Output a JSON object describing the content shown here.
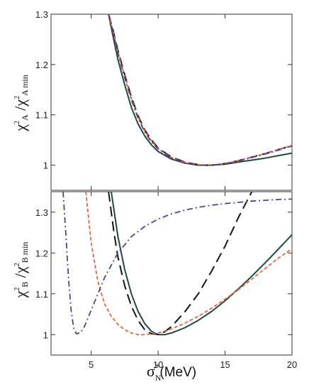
{
  "colors": {
    "solid": "#1f4a3f",
    "long_dash": "#141414",
    "short_dash": "#e8643c",
    "dash_dot": "#5a3f8a",
    "dotted_red": "#c23b3b",
    "frame": "#333333"
  },
  "chart_data": [
    {
      "type": "line",
      "panel": "top",
      "ylabel": {
        "chi": "χ",
        "sup": "2",
        "sub": "A",
        "slash": " /",
        "chi2": "χ",
        "sup2": "2",
        "sub2": "A min"
      },
      "xlim": [
        2,
        20
      ],
      "ylim": [
        0.95,
        1.3
      ],
      "yticks": [
        "1.3",
        "1.2",
        "1.1",
        "1"
      ],
      "ytick_values": [
        1.3,
        1.2,
        1.1,
        1.0
      ],
      "series": [
        {
          "style": "solid",
          "x": [
            6.3,
            6.6,
            7,
            7.5,
            8,
            8.5,
            9,
            9.5,
            10,
            11,
            12,
            13,
            13.5,
            14,
            15,
            16,
            17,
            18,
            19,
            20
          ],
          "y": [
            1.3,
            1.26,
            1.21,
            1.16,
            1.115,
            1.082,
            1.058,
            1.04,
            1.027,
            1.012,
            1.004,
            1.0,
            1.0,
            1.0,
            1.002,
            1.006,
            1.01,
            1.014,
            1.019,
            1.024
          ]
        },
        {
          "style": "long_dash",
          "x": [
            6.3,
            6.6,
            7,
            7.5,
            8,
            8.5,
            9,
            9.5,
            10,
            11,
            12,
            13,
            13.5,
            14,
            15,
            16,
            17,
            18,
            19,
            20
          ],
          "y": [
            1.3,
            1.272,
            1.228,
            1.18,
            1.136,
            1.098,
            1.07,
            1.05,
            1.034,
            1.016,
            1.006,
            1.001,
            1.0,
            1.0,
            1.003,
            1.009,
            1.016,
            1.023,
            1.031,
            1.039
          ]
        },
        {
          "style": "short_dash",
          "x": [
            6.3,
            6.6,
            7,
            7.5,
            8,
            8.5,
            9,
            9.5,
            10,
            11,
            12,
            13,
            13.5,
            14,
            15,
            16,
            17,
            18,
            19,
            20
          ],
          "y": [
            1.3,
            1.27,
            1.225,
            1.177,
            1.133,
            1.096,
            1.068,
            1.048,
            1.033,
            1.015,
            1.005,
            1.001,
            1.0,
            1.0,
            1.003,
            1.009,
            1.016,
            1.023,
            1.031,
            1.039
          ]
        },
        {
          "style": "dash_dot",
          "x": [
            6.3,
            6.6,
            7,
            7.5,
            8,
            8.5,
            9,
            9.5,
            10,
            11,
            12,
            13,
            13.5,
            14,
            15,
            16,
            17,
            18,
            19,
            20
          ],
          "y": [
            1.3,
            1.268,
            1.222,
            1.174,
            1.13,
            1.093,
            1.066,
            1.046,
            1.032,
            1.014,
            1.005,
            1.001,
            1.0,
            1.0,
            1.003,
            1.008,
            1.015,
            1.022,
            1.03,
            1.038
          ]
        }
      ]
    },
    {
      "type": "line",
      "panel": "bottom",
      "ylabel": {
        "chi": "χ",
        "sup": "2",
        "sub": "B",
        "slash": " /",
        "chi2": "χ",
        "sup2": "2",
        "sub2": "B min"
      },
      "xlabel": {
        "sigma": "σ",
        "sub": "N",
        "sup": "*",
        "unit": "(MeV)"
      },
      "xlim": [
        2,
        20
      ],
      "ylim": [
        0.95,
        1.35
      ],
      "xticks": [
        "5",
        "10",
        "15",
        "20"
      ],
      "xtick_values": [
        5,
        10,
        15,
        20
      ],
      "yticks": [
        "1.3",
        "1.2",
        "1.1",
        "1"
      ],
      "ytick_values": [
        1.3,
        1.2,
        1.1,
        1.0
      ],
      "series": [
        {
          "style": "solid",
          "x": [
            6.5,
            7,
            7.5,
            8,
            8.5,
            9,
            9.5,
            10,
            10.5,
            11,
            12,
            13,
            14,
            15,
            16,
            17,
            18,
            19,
            20
          ],
          "y": [
            1.35,
            1.24,
            1.16,
            1.1,
            1.057,
            1.027,
            1.008,
            1.0,
            1.0,
            1.004,
            1.017,
            1.035,
            1.057,
            1.083,
            1.112,
            1.143,
            1.176,
            1.21,
            1.245
          ]
        },
        {
          "style": "long_dash",
          "x": [
            6.3,
            6.7,
            7,
            7.5,
            8,
            8.5,
            9,
            9.5,
            10,
            10.5,
            11,
            12,
            13,
            14,
            15,
            16,
            17
          ],
          "y": [
            1.35,
            1.25,
            1.19,
            1.12,
            1.07,
            1.035,
            1.012,
            1.002,
            1.001,
            1.007,
            1.02,
            1.056,
            1.1,
            1.156,
            1.217,
            1.287,
            1.35
          ]
        },
        {
          "style": "short_dash",
          "x": [
            4.6,
            5,
            5.5,
            6,
            6.5,
            7,
            7.5,
            8,
            8.5,
            9,
            10,
            11,
            12,
            13,
            14,
            15,
            16,
            17,
            18,
            19,
            20
          ],
          "y": [
            1.35,
            1.225,
            1.13,
            1.075,
            1.045,
            1.025,
            1.012,
            1.004,
            1.0,
            1.0,
            1.004,
            1.014,
            1.028,
            1.045,
            1.065,
            1.087,
            1.11,
            1.136,
            1.162,
            1.188,
            1.21
          ]
        },
        {
          "style": "dash_dot",
          "x": [
            2.9,
            3.1,
            3.3,
            3.5,
            3.7,
            3.9,
            4.2,
            4.5,
            5,
            5.5,
            6,
            7,
            8,
            9,
            10,
            11,
            12,
            13,
            14,
            15,
            16,
            17,
            18,
            19,
            20
          ],
          "y": [
            1.35,
            1.25,
            1.14,
            1.06,
            1.015,
            1.002,
            1.005,
            1.02,
            1.06,
            1.1,
            1.14,
            1.2,
            1.24,
            1.265,
            1.283,
            1.296,
            1.305,
            1.312,
            1.317,
            1.321,
            1.324,
            1.327,
            1.329,
            1.331,
            1.332
          ]
        }
      ]
    }
  ]
}
